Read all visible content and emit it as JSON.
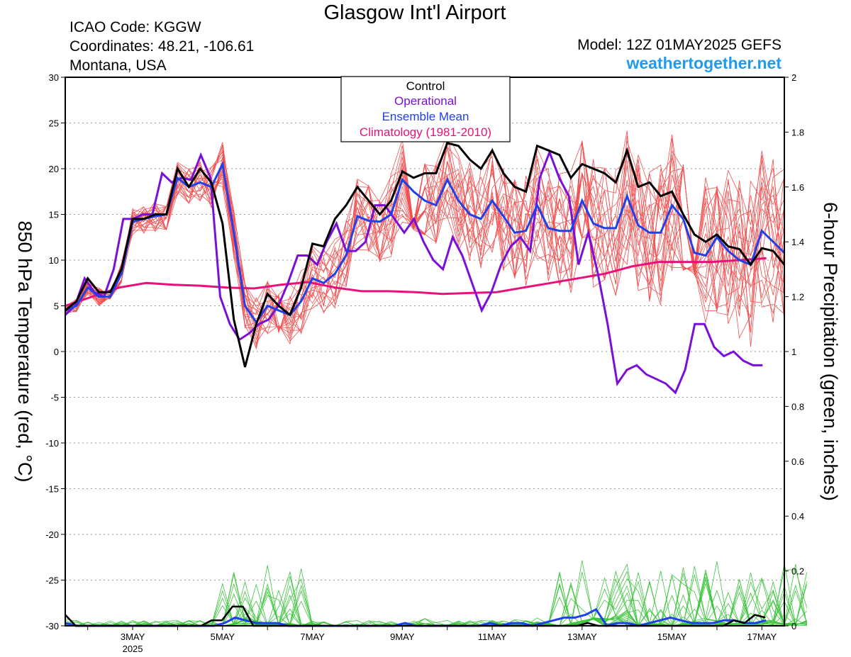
{
  "header": {
    "title": "Glasgow Int'l Airport",
    "icao": "ICAO Code: KGGW",
    "coordinates": "Coordinates: 48.21, -106.61",
    "region": "Montana, USA",
    "model": "Model: 12Z 01MAY2025 GEFS",
    "site": "weathertogether.net"
  },
  "colors": {
    "members_temp": "#f05050",
    "members_precip": "#3ec43e",
    "control": "#000000",
    "operational": "#7a10d8",
    "ensemble_mean": "#2040e8",
    "climatology": "#e8107a",
    "site": "#1e9bf0"
  },
  "chart_data": {
    "type": "line",
    "title": "Glasgow Int'l Airport",
    "ylabel": "850 hPa Temperature (red, °C)",
    "y2label": "6-hour Precipitation (green, inches)",
    "ylim": [
      -30,
      30
    ],
    "y2lim": [
      0,
      2
    ],
    "yticks": [
      30,
      25,
      20,
      15,
      10,
      5,
      0,
      -5,
      -10,
      -15,
      -20,
      -25,
      -30
    ],
    "y2ticks": [
      "2",
      "1.8",
      "1.6",
      "1.4",
      "1.2",
      "1",
      "0.8",
      "0.6",
      "0.4",
      "0.2",
      "0"
    ],
    "xticks": [
      {
        "day": 3,
        "label": "3MAY",
        "sub": "2025"
      },
      {
        "day": 5,
        "label": "5MAY",
        "sub": ""
      },
      {
        "day": 7,
        "label": "7MAY",
        "sub": ""
      },
      {
        "day": 9,
        "label": "9MAY",
        "sub": ""
      },
      {
        "day": 11,
        "label": "11MAY",
        "sub": ""
      },
      {
        "day": 13,
        "label": "13MAY",
        "sub": ""
      },
      {
        "day": 15,
        "label": "15MAY",
        "sub": ""
      },
      {
        "day": 17,
        "label": "17MAY",
        "sub": ""
      }
    ],
    "xrange_days": [
      1.5,
      17.5
    ],
    "legend": {
      "placement": "top-center",
      "entries": [
        {
          "name": "Control",
          "color": "#000000"
        },
        {
          "name": "Operational",
          "color": "#7a10d8"
        },
        {
          "name": "Ensemble Mean",
          "color": "#2040e8"
        },
        {
          "name": "Climatology (1981-2010)",
          "color": "#e8107a"
        }
      ]
    },
    "grid": true,
    "temperature": {
      "step_days": 0.25,
      "start_day": 1.5,
      "control": [
        4.5,
        5.5,
        8,
        6.5,
        6.5,
        9,
        14.5,
        14.5,
        15,
        15,
        20,
        18,
        20,
        18.5,
        14,
        3.5,
        -1.7,
        3,
        6.3,
        5,
        4,
        7,
        11.8,
        11.5,
        14.5,
        16,
        18,
        16.5,
        15,
        16.5,
        19.7,
        19,
        19.5,
        19.5,
        22.8,
        22.5,
        21,
        20,
        22,
        19.5,
        18,
        17.5,
        22.5,
        22,
        21.5,
        19,
        20.5,
        20,
        19.5,
        18.5,
        22,
        18,
        18.5,
        17,
        17.5,
        15,
        12.8,
        12,
        12.8,
        11.5,
        11.2,
        9.5,
        11.3,
        11,
        9.5
      ],
      "operational": [
        4,
        5,
        8,
        6.5,
        6,
        9,
        14.5,
        14.5,
        15,
        15,
        19.5,
        18.5,
        19,
        18.8,
        21.5,
        19,
        6,
        3,
        1.3,
        2,
        3,
        3.5,
        5,
        7.5,
        10.5,
        10.5,
        9.5,
        12,
        14,
        11,
        11,
        12,
        16,
        16,
        14.5,
        13,
        14.5,
        12,
        10,
        9,
        12.5,
        10.5,
        7.5,
        4.5,
        6.5,
        9.5,
        11.5,
        12.5,
        11,
        19,
        21.8,
        19,
        17,
        9.5,
        13,
        8.5,
        3,
        -3.5,
        -2,
        -1.5,
        -2.5,
        -3,
        -3.5,
        -4.5,
        -2,
        3,
        3,
        0.5,
        -0.5,
        0,
        -1,
        -1.5,
        -1.5
      ],
      "ensemble_mean": [
        4.5,
        5,
        7,
        6,
        6,
        8.5,
        14.2,
        14.5,
        14.8,
        15,
        19,
        18,
        18.5,
        18,
        20.5,
        13,
        5,
        3.2,
        5,
        4.5,
        4,
        5.5,
        8,
        7.5,
        8.5,
        10.5,
        14.8,
        14.3,
        14.2,
        15,
        18.8,
        17.5,
        16.5,
        16,
        18.8,
        16.5,
        15,
        14.5,
        16.5,
        14.8,
        13,
        13.2,
        16,
        13.5,
        13.2,
        13.2,
        16.5,
        14,
        13.5,
        13.5,
        17,
        13.8,
        13,
        13,
        16,
        14.5,
        10.8,
        10.5,
        12.5,
        11,
        10,
        9.5,
        13.2,
        12,
        10.8
      ],
      "climatology": [
        5,
        6,
        7,
        7.5,
        7.3,
        7.2,
        7,
        6.9,
        7.3,
        7.6,
        7,
        6.6,
        6.6,
        6.5,
        6.3,
        6.4,
        6.5,
        7,
        7.5,
        8,
        8.5,
        9.3,
        9.8,
        9.8,
        9.8,
        10,
        10.2
      ]
    },
    "precip": {
      "step_days": 0.25,
      "start_day": 1.5,
      "control": [
        0.04,
        0,
        0,
        0,
        0,
        0,
        0,
        0,
        0,
        0,
        0,
        0,
        0,
        0,
        0.02,
        0.02,
        0.07,
        0.07,
        0,
        0,
        0,
        0,
        0,
        0,
        0,
        0,
        0,
        0,
        0,
        0,
        0,
        0,
        0,
        0,
        0,
        0,
        0,
        0,
        0,
        0,
        0,
        0,
        0,
        0,
        0,
        0,
        0,
        0,
        0,
        0,
        0.01,
        0,
        0,
        0,
        0,
        0,
        0,
        0,
        0,
        0,
        0,
        0,
        0,
        0,
        0.02,
        0.01,
        0.04,
        0.03
      ],
      "ensemble_mean": [
        0.01,
        0,
        0,
        0,
        0,
        0,
        0,
        0,
        0,
        0,
        0,
        0,
        0,
        0,
        0,
        0.01,
        0.03,
        0.02,
        0.01,
        0.01,
        0.01,
        0,
        0,
        0,
        0,
        0,
        0,
        0,
        0,
        0,
        0,
        0,
        0.01,
        0,
        0,
        0,
        0,
        0,
        0,
        0,
        0.01,
        0,
        0.01,
        0.01,
        0,
        0.01,
        0.02,
        0.03,
        0.03,
        0.04,
        0.06,
        0,
        0.01,
        0.01,
        0,
        0.01,
        0.02,
        0.03,
        0.02,
        0.01,
        0.01,
        0.01,
        0.02,
        0.02,
        0.01,
        0.01,
        0.02
      ]
    }
  }
}
